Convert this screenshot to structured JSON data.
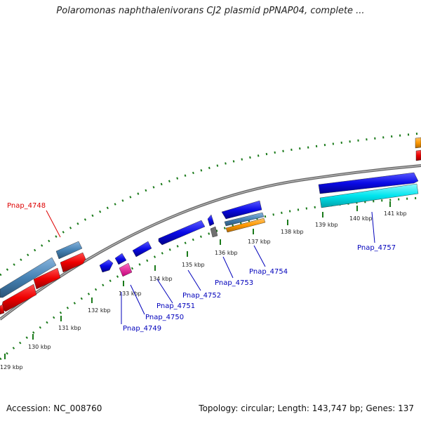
{
  "title": "Polaromonas naphthalenivorans CJ2 plasmid pPNAP04, complete ...",
  "kbp_ticks": [
    "129 kbp",
    "130 kbp",
    "131 kbp",
    "132 kbp",
    "133 kbp",
    "134 kbp",
    "135 kbp",
    "136 kbp",
    "137 kbp",
    "138 kbp",
    "139 kbp",
    "140 kbp",
    "141 kbp"
  ],
  "genes": [
    {
      "name": "Pnap_4748",
      "color": "#dd0000"
    },
    {
      "name": "Pnap_4749",
      "color": "#0000bb"
    },
    {
      "name": "Pnap_4750",
      "color": "#0000bb"
    },
    {
      "name": "Pnap_4751",
      "color": "#0000bb"
    },
    {
      "name": "Pnap_4752",
      "color": "#0000bb"
    },
    {
      "name": "Pnap_4753",
      "color": "#0000bb"
    },
    {
      "name": "Pnap_4754",
      "color": "#0000bb"
    },
    {
      "name": "Pnap_4757",
      "color": "#0000bb"
    }
  ],
  "colors": {
    "backbone": "#888888",
    "ticks": "#1a7a1a",
    "blue_gene": "#0a0ae6",
    "red_gene": "#ee0000",
    "steelblue_gene": "#4682b4",
    "cyan_gene": "#00e5ee",
    "orange_gene": "#ff9900",
    "magenta_gene": "#ff1493",
    "gray_gene": "#707070"
  },
  "footer": {
    "accession": "Accession: NC_008760",
    "summary": "Topology: circular; Length: 143,747 bp; Genes: 137"
  }
}
